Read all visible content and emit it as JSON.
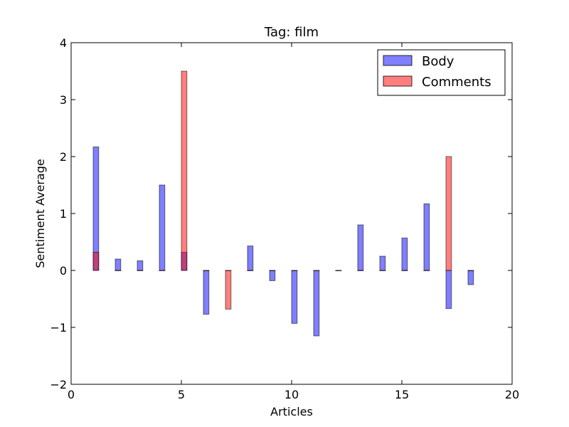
{
  "chart_data": {
    "type": "bar",
    "title": "Tag: film",
    "xlabel": "Articles",
    "ylabel": "Sentiment Average",
    "xlim": [
      0,
      20
    ],
    "ylim": [
      -2,
      4
    ],
    "xticks": [
      0,
      5,
      10,
      15,
      20
    ],
    "yticks": [
      -2,
      -1,
      0,
      1,
      2,
      3,
      4
    ],
    "xtick_labels": [
      "0",
      "5",
      "10",
      "15",
      "20"
    ],
    "ytick_labels": [
      "−2",
      "−1",
      "0",
      "1",
      "2",
      "3",
      "4"
    ],
    "bar_width": 0.25,
    "grid": false,
    "legend_position": "top-right",
    "series": [
      {
        "name": "Body",
        "color": "#0000ff",
        "opacity": 0.5,
        "x": [
          1,
          2,
          3,
          4,
          5,
          6,
          7,
          8,
          9,
          10,
          11,
          12,
          13,
          14,
          15,
          16,
          17,
          18
        ],
        "values": [
          2.17,
          0.2,
          0.17,
          1.5,
          0.32,
          -0.77,
          0,
          0.43,
          -0.18,
          -0.93,
          -1.15,
          0,
          0.8,
          0.25,
          0.57,
          1.17,
          -0.67,
          -0.25
        ]
      },
      {
        "name": "Comments",
        "color": "#ff0000",
        "opacity": 0.5,
        "x": [
          1,
          2,
          3,
          4,
          5,
          6,
          7,
          8,
          9,
          10,
          11,
          12,
          13,
          14,
          15,
          16,
          17,
          18
        ],
        "values": [
          0.32,
          0,
          0,
          0,
          3.5,
          0,
          -0.68,
          0,
          0,
          0,
          0,
          0,
          0,
          0,
          0,
          0,
          2.0,
          0
        ]
      }
    ]
  }
}
